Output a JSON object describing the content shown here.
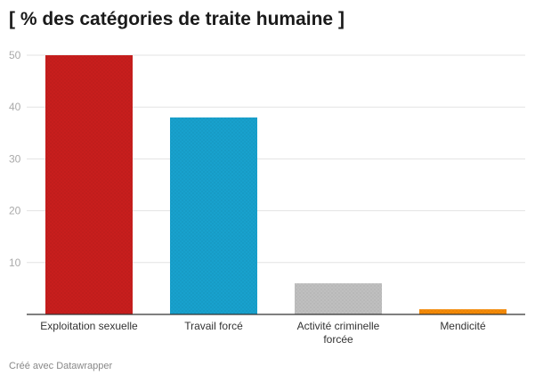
{
  "title": "[ % des catégories de traite humaine ]",
  "footer": "Créé avec Datawrapper",
  "chart_data": {
    "type": "bar",
    "title": "[ % des catégories de traite humaine ]",
    "xlabel": "",
    "ylabel": "",
    "categories": [
      "Exploitation sexuelle",
      "Travail forcé",
      "Activité criminelle forcée",
      "Mendicité"
    ],
    "category_lines": [
      [
        "Exploitation sexuelle"
      ],
      [
        "Travail forcé"
      ],
      [
        "Activité criminelle",
        "forcée"
      ],
      [
        "Mendicité"
      ]
    ],
    "values": [
      50,
      38,
      6,
      1
    ],
    "colors": [
      "#c71e1d",
      "#18a1cd",
      "#bfbfbf",
      "#f58a07"
    ],
    "ylim": [
      0,
      50
    ],
    "yticks": [
      10,
      20,
      30,
      40,
      50
    ],
    "grid": true
  }
}
